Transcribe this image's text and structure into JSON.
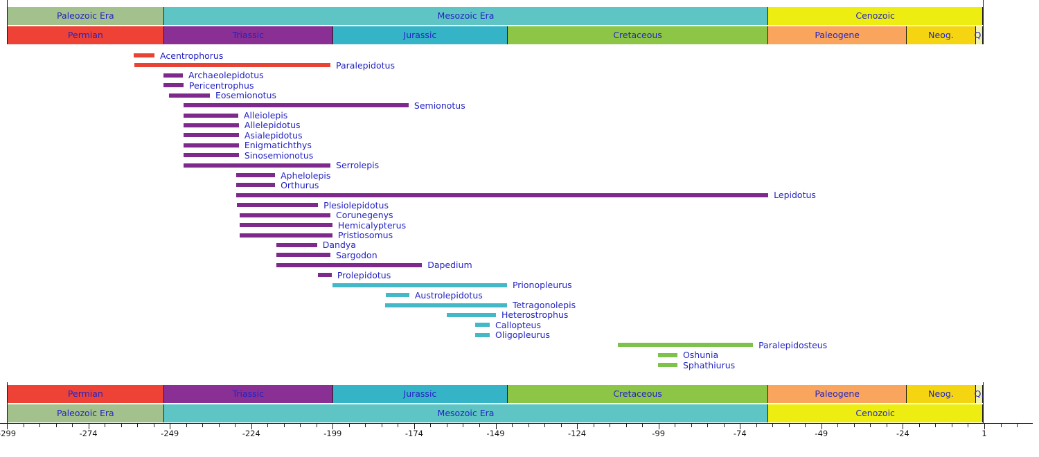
{
  "figure": {
    "background": "#ffffff",
    "label_text_color": "#2323c3",
    "axis_text_color": "#1a1a1a"
  },
  "chart_data": {
    "type": "bar",
    "subtype": "horizontal-temporal-range-timeline",
    "xlabel": "",
    "ylabel": "",
    "xlim": [
      -299,
      1
    ],
    "grid": false,
    "legend": false,
    "x_axis": {
      "min": -299,
      "max": 1,
      "major_tick_step": 25,
      "minor_tick_step": 5,
      "major_tick_labels": [
        "-299",
        "-274",
        "-249",
        "-224",
        "-199",
        "-174",
        "-149",
        "-124",
        "-99",
        "-74",
        "-49",
        "-24",
        "1"
      ]
    },
    "eras": [
      {
        "label": "Paleozoic Era",
        "from": -299,
        "to": -251,
        "color": "#a3c18c"
      },
      {
        "label": "Mesozoic Era",
        "from": -251,
        "to": -65.5,
        "color": "#5ec4c4"
      },
      {
        "label": "Cenozoic",
        "from": -65.5,
        "to": 0.6,
        "color": "#eded12"
      }
    ],
    "periods": [
      {
        "label": "Permian",
        "from": -299,
        "to": -251,
        "color": "#ee4237"
      },
      {
        "label": "Triassic",
        "from": -251,
        "to": -199.1,
        "color": "#8a2f93"
      },
      {
        "label": "Jurassic",
        "from": -199.1,
        "to": -145.5,
        "color": "#35b4c7"
      },
      {
        "label": "Cretaceous",
        "from": -145.5,
        "to": -65.5,
        "color": "#8dc546"
      },
      {
        "label": "Paleogene",
        "from": -65.5,
        "to": -23.0,
        "color": "#faa55e"
      },
      {
        "label": "Neog.",
        "from": -23.0,
        "to": -1.8,
        "color": "#f5d512"
      },
      {
        "label": "Q.",
        "from": -1.8,
        "to": 0.6,
        "color": "#f3f3b0"
      }
    ],
    "group_colors": {
      "permian": "#e84335",
      "triassic": "#7e2a8c",
      "jurassic": "#45b8c8",
      "cretaceous": "#7dc24b"
    },
    "taxa": [
      {
        "name": "Acentrophorus",
        "from": -260.1,
        "to": -253.7,
        "group": "permian"
      },
      {
        "name": "Paralepidotus",
        "from": -259.9,
        "to": -199.7,
        "group": "permian"
      },
      {
        "name": "Archaeolepidotus",
        "from": -251.0,
        "to": -245.0,
        "group": "triassic"
      },
      {
        "name": "Pericentrophus",
        "from": -251.0,
        "to": -244.8,
        "group": "triassic"
      },
      {
        "name": "Eosemionotus",
        "from": -249.2,
        "to": -236.7,
        "group": "triassic"
      },
      {
        "name": "Semionotus",
        "from": -244.8,
        "to": -175.7,
        "group": "triassic"
      },
      {
        "name": "Alleiolepis",
        "from": -244.8,
        "to": -228.0,
        "group": "triassic"
      },
      {
        "name": "Allelepidotus",
        "from": -244.8,
        "to": -227.8,
        "group": "triassic"
      },
      {
        "name": "Asialepidotus",
        "from": -244.8,
        "to": -227.8,
        "group": "triassic"
      },
      {
        "name": "Enigmatichthys",
        "from": -244.8,
        "to": -227.8,
        "group": "triassic"
      },
      {
        "name": "Sinosemionotus",
        "from": -244.8,
        "to": -227.8,
        "group": "triassic"
      },
      {
        "name": "Serrolepis",
        "from": -244.8,
        "to": -199.7,
        "group": "triassic"
      },
      {
        "name": "Aphelolepis",
        "from": -228.6,
        "to": -216.7,
        "group": "triassic"
      },
      {
        "name": "Orthurus",
        "from": -228.6,
        "to": -216.7,
        "group": "triassic"
      },
      {
        "name": "Lepidotus",
        "from": -228.6,
        "to": -65.3,
        "group": "triassic"
      },
      {
        "name": "Plesiolepidotus",
        "from": -228.4,
        "to": -203.5,
        "group": "triassic"
      },
      {
        "name": "Corunegenys",
        "from": -227.6,
        "to": -199.7,
        "group": "triassic"
      },
      {
        "name": "Hemicalypterus",
        "from": -227.6,
        "to": -199.1,
        "group": "triassic"
      },
      {
        "name": "Pristiosomus",
        "from": -227.6,
        "to": -199.1,
        "group": "triassic"
      },
      {
        "name": "Dandya",
        "from": -216.3,
        "to": -203.8,
        "group": "triassic"
      },
      {
        "name": "Sargodon",
        "from": -216.3,
        "to": -199.7,
        "group": "triassic"
      },
      {
        "name": "Dapedium",
        "from": -216.3,
        "to": -171.6,
        "group": "triassic"
      },
      {
        "name": "Prolepidotus",
        "from": -203.5,
        "to": -199.3,
        "group": "triassic"
      },
      {
        "name": "Prionopleurus",
        "from": -199.1,
        "to": -145.5,
        "group": "jurassic"
      },
      {
        "name": "Austrolepidotus",
        "from": -182.7,
        "to": -175.5,
        "group": "jurassic"
      },
      {
        "name": "Tetragonolepis",
        "from": -182.9,
        "to": -145.5,
        "group": "jurassic"
      },
      {
        "name": "Heterostrophus",
        "from": -164.0,
        "to": -148.9,
        "group": "jurassic"
      },
      {
        "name": "Callopteus",
        "from": -155.3,
        "to": -150.8,
        "group": "jurassic"
      },
      {
        "name": "Oligopleurus",
        "from": -155.3,
        "to": -150.8,
        "group": "jurassic"
      },
      {
        "name": "Paralepidosteus",
        "from": -111.5,
        "to": -70.0,
        "group": "cretaceous"
      },
      {
        "name": "Oshunia",
        "from": -99.1,
        "to": -93.2,
        "group": "cretaceous"
      },
      {
        "name": "Sphathiurus",
        "from": -99.1,
        "to": -93.2,
        "group": "cretaceous"
      }
    ]
  }
}
